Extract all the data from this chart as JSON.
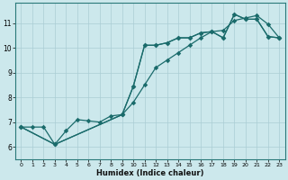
{
  "xlabel": "Humidex (Indice chaleur)",
  "bg_color": "#cce8ec",
  "line_color": "#1a6b6b",
  "grid_color": "#aacdd4",
  "xlim": [
    -0.5,
    23.5
  ],
  "ylim": [
    5.5,
    11.8
  ],
  "xticks": [
    0,
    1,
    2,
    3,
    4,
    5,
    6,
    7,
    8,
    9,
    10,
    11,
    12,
    13,
    14,
    15,
    16,
    17,
    18,
    19,
    20,
    21,
    22,
    23
  ],
  "yticks": [
    6,
    7,
    8,
    9,
    10,
    11
  ],
  "line1_x": [
    0,
    1,
    2,
    3,
    4,
    5,
    6,
    7,
    8,
    9,
    10,
    11,
    12,
    13,
    14,
    15,
    16,
    17,
    18,
    19,
    20,
    21,
    22,
    23
  ],
  "line1_y": [
    6.8,
    6.8,
    6.8,
    6.1,
    6.65,
    7.1,
    7.05,
    7.0,
    7.25,
    7.3,
    8.45,
    10.1,
    10.1,
    10.2,
    10.4,
    10.4,
    10.6,
    10.65,
    10.4,
    11.35,
    11.15,
    11.15,
    10.45,
    10.4
  ],
  "line2_x": [
    0,
    3,
    9,
    10,
    11,
    12,
    13,
    14,
    15,
    16,
    17,
    18,
    19,
    20,
    21,
    22,
    23
  ],
  "line2_y": [
    6.8,
    6.1,
    7.3,
    8.45,
    10.1,
    10.1,
    10.2,
    10.4,
    10.4,
    10.6,
    10.65,
    10.4,
    11.35,
    11.15,
    11.15,
    10.45,
    10.4
  ],
  "line3_x": [
    0,
    3,
    9,
    10,
    11,
    12,
    13,
    14,
    15,
    16,
    17,
    18,
    19,
    20,
    21,
    22,
    23
  ],
  "line3_y": [
    6.8,
    6.1,
    7.3,
    7.8,
    8.5,
    9.2,
    9.5,
    9.8,
    10.1,
    10.4,
    10.65,
    10.7,
    11.1,
    11.2,
    11.3,
    10.95,
    10.4
  ]
}
